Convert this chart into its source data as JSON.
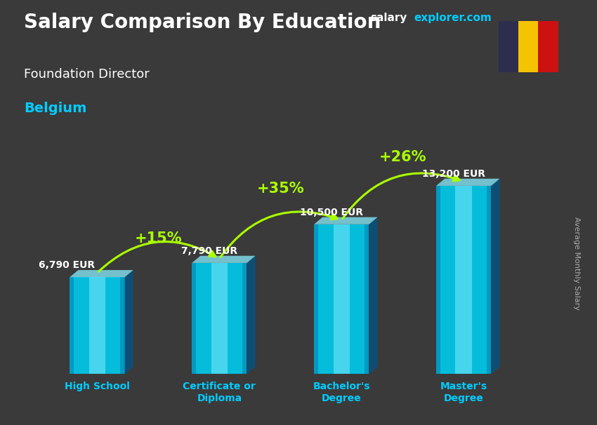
{
  "title_main": "Salary Comparison By Education",
  "title_sub": "Foundation Director",
  "title_country": "Belgium",
  "ylabel": "Average Monthly Salary",
  "website_salary": "salary",
  "website_explorer": "explorer.com",
  "categories": [
    "High School",
    "Certificate or\nDiploma",
    "Bachelor's\nDegree",
    "Master's\nDegree"
  ],
  "values": [
    6790,
    7790,
    10500,
    13200
  ],
  "value_labels": [
    "6,790 EUR",
    "7,790 EUR",
    "10,500 EUR",
    "13,200 EUR"
  ],
  "pct_labels": [
    "+15%",
    "+35%",
    "+26%"
  ],
  "bar_color_main": "#00ccee",
  "bar_color_light": "#88eeff",
  "bar_color_dark": "#0077aa",
  "bar_color_side": "#005588",
  "title_color": "#ffffff",
  "subtitle_color": "#ffffff",
  "country_color": "#00ccff",
  "value_label_color": "#ffffff",
  "pct_color": "#aaff00",
  "xlabel_color": "#00ccff",
  "ylabel_color": "#aaaaaa",
  "website_color1": "#ffffff",
  "website_color2": "#00ccff",
  "flag_colors": [
    "#2d2d4e",
    "#f5c400",
    "#cc1111"
  ],
  "ylim_max": 15500,
  "bar_width": 0.45
}
